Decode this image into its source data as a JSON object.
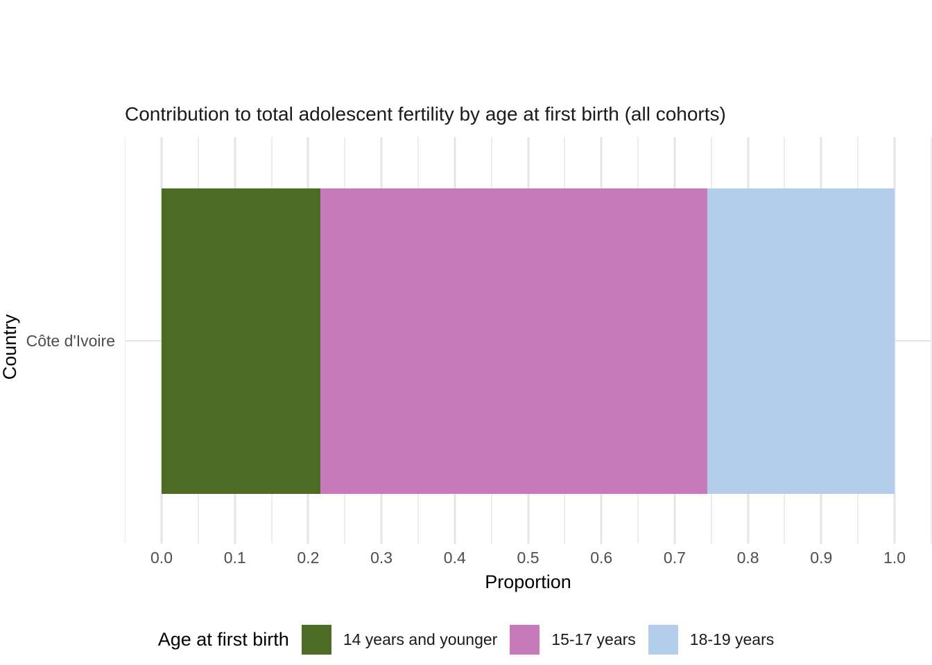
{
  "chart_data": {
    "type": "bar",
    "orientation": "horizontal",
    "stacked": true,
    "title": "Contribution to total adolescent fertility by age at first birth (all cohorts)",
    "xlabel": "Proportion",
    "ylabel": "Country",
    "categories": [
      "Côte d'Ivoire"
    ],
    "series": [
      {
        "name": "14 years and younger",
        "color": "#4C6B25",
        "values": [
          0.217
        ]
      },
      {
        "name": "15-17 years",
        "color": "#C77BBC",
        "values": [
          0.528
        ]
      },
      {
        "name": "18-19 years",
        "color": "#B5CDEC",
        "values": [
          0.255
        ]
      }
    ],
    "xlim": [
      0.0,
      1.0
    ],
    "x_tick_labels": [
      "0.0",
      "0.1",
      "0.2",
      "0.3",
      "0.4",
      "0.5",
      "0.6",
      "0.7",
      "0.8",
      "0.9",
      "1.0"
    ],
    "grid": {
      "show": true,
      "major_step": 0.1,
      "minor_step": 0.05
    },
    "legend": {
      "title": "Age at first birth",
      "position": "bottom"
    }
  },
  "colors": {
    "grid_major": "#e4e4e4",
    "grid_minor": "#ededed",
    "tick_label": "#4d4d4d",
    "text": "#000000",
    "background": "#ffffff"
  }
}
